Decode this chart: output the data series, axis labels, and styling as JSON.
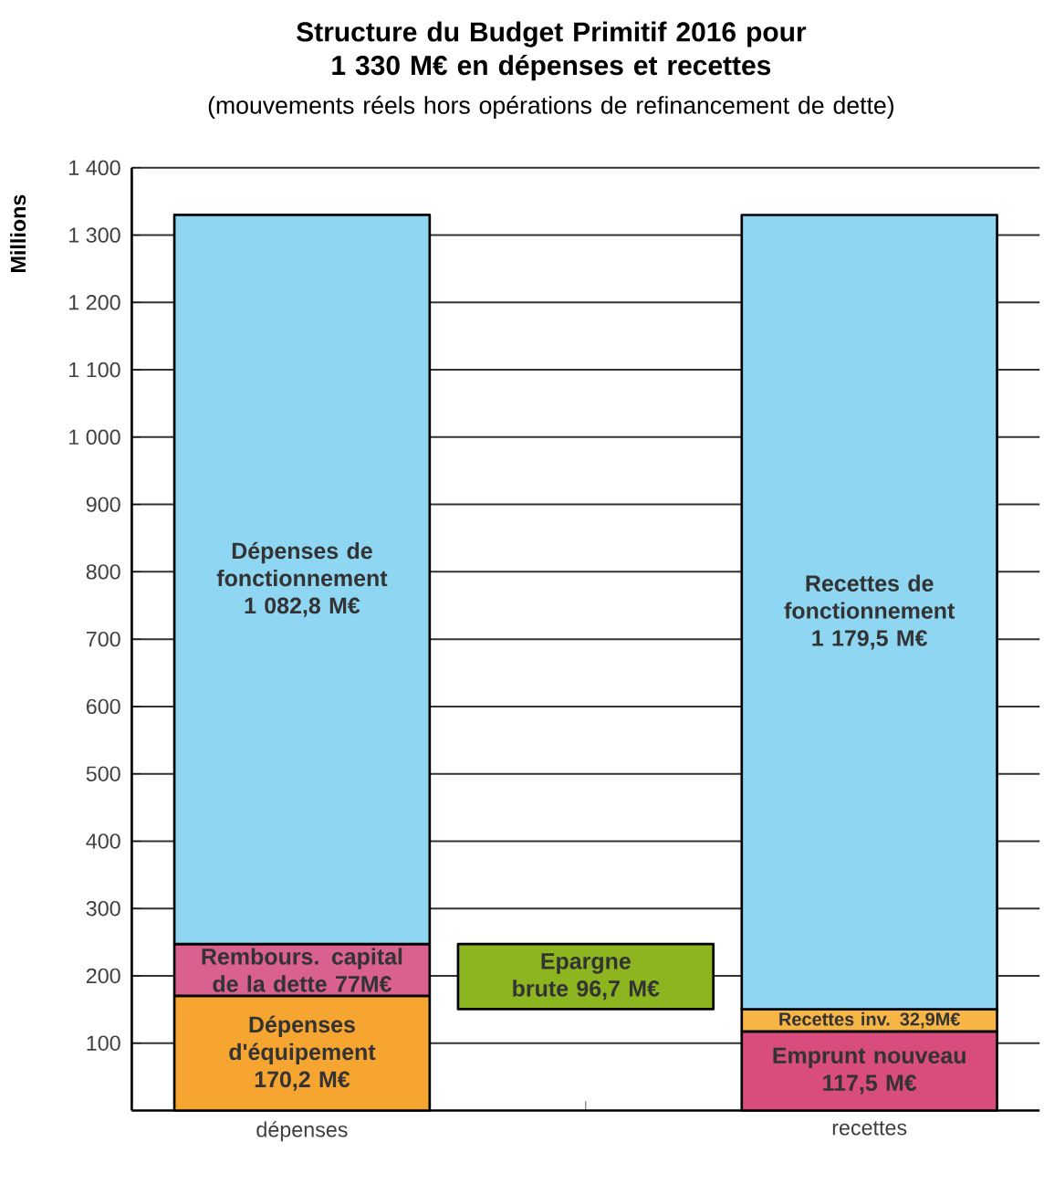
{
  "chart_data": {
    "type": "bar",
    "title": "Structure du Budget Primitif 2016 pour 1 330 M€ en dépenses et recettes",
    "subtitle": "(mouvements réels hors opérations de refinancement de dette)",
    "ylabel": "Millions",
    "categories": [
      "dépenses",
      null,
      "recettes"
    ],
    "series": [
      {
        "color": "#f7a531",
        "values": [
          170.2,
          null,
          null
        ],
        "base": [
          0,
          null,
          null
        ],
        "value_labels": [
          "Dépenses d'équipement 170,2 M€",
          null,
          null
        ]
      },
      {
        "color": "#d9608f",
        "values": [
          77,
          null,
          null
        ],
        "base": [
          170.2,
          null,
          null
        ],
        "value_labels": [
          "Rembours. capital de la dette 77M€",
          null,
          null
        ]
      },
      {
        "color": "#8ed6f2",
        "values": [
          1082.8,
          null,
          null
        ],
        "base": [
          247.2,
          null,
          null
        ],
        "value_labels": [
          "Dépenses de fonctionnement 1 082,8 M€",
          null,
          null
        ]
      },
      {
        "color": "#8db51f",
        "values": [
          null,
          96.7,
          null
        ],
        "base": [
          null,
          150.5,
          null
        ],
        "value_labels": [
          null,
          "Epargne brute 96,7 M€",
          null
        ]
      },
      {
        "color": "#d84c7e",
        "values": [
          null,
          null,
          117.5
        ],
        "base": [
          null,
          null,
          0
        ],
        "value_labels": [
          null,
          null,
          "Emprunt nouveau 117,5 M€"
        ]
      },
      {
        "color": "#f7b545",
        "values": [
          null,
          null,
          32.9
        ],
        "base": [
          null,
          null,
          117.5
        ],
        "value_labels": [
          null,
          null,
          "Recettes inv. 32,9M€"
        ]
      },
      {
        "color": "#8ed6f2",
        "values": [
          null,
          null,
          1179.5
        ],
        "base": [
          null,
          null,
          150.4
        ],
        "value_labels": [
          null,
          null,
          "Recettes de fonctionnement 1 179,5 M€"
        ]
      }
    ],
    "ylim": [
      0,
      1400
    ],
    "yticks": [
      100,
      200,
      300,
      400,
      500,
      600,
      700,
      800,
      900,
      {
        "value": 1000,
        "label": "1 000"
      },
      {
        "value": 1100,
        "label": "1 100"
      },
      {
        "value": 1200,
        "label": "1 200"
      },
      {
        "value": 1300,
        "label": "1 300"
      },
      {
        "value": 1400,
        "label": "1 400"
      }
    ],
    "grid": "y"
  }
}
